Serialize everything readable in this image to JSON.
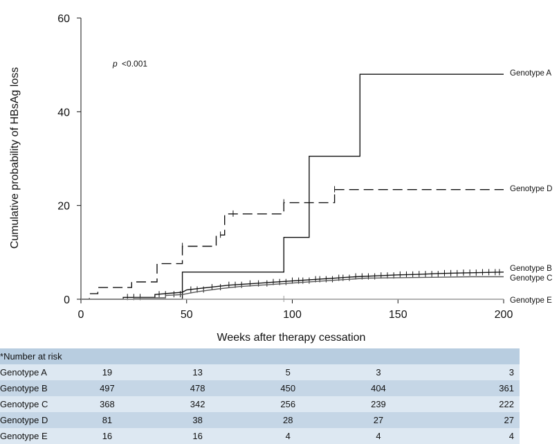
{
  "chart_data": {
    "type": "line",
    "step": true,
    "xlabel": "Weeks after therapy cessation",
    "ylabel": "Cumulative probability of HBsAg loss",
    "xlim": [
      0,
      200
    ],
    "ylim": [
      0,
      60
    ],
    "xticks": [
      0,
      50,
      100,
      150,
      200
    ],
    "yticks": [
      0,
      20,
      40,
      60
    ],
    "annotation_prefix": "p",
    "annotation_value": "<0.001",
    "series": [
      {
        "name": "Genotype A",
        "style": "solid",
        "color": "#111111",
        "points": [
          [
            0,
            0
          ],
          [
            48,
            0
          ],
          [
            48,
            5.8
          ],
          [
            96,
            5.8
          ],
          [
            96,
            13.2
          ],
          [
            108,
            13.2
          ],
          [
            108,
            30.5
          ],
          [
            132,
            30.5
          ],
          [
            132,
            48
          ],
          [
            200,
            48
          ]
        ]
      },
      {
        "name": "Genotype B",
        "style": "solid",
        "color": "#111111",
        "points": [
          [
            0,
            0
          ],
          [
            20,
            0
          ],
          [
            20,
            0.4
          ],
          [
            35,
            0.4
          ],
          [
            35,
            1
          ],
          [
            48,
            1.5
          ],
          [
            50,
            2
          ],
          [
            60,
            2.5
          ],
          [
            70,
            3
          ],
          [
            80,
            3.3
          ],
          [
            90,
            3.6
          ],
          [
            100,
            3.9
          ],
          [
            110,
            4.2
          ],
          [
            120,
            4.5
          ],
          [
            130,
            4.8
          ],
          [
            140,
            5
          ],
          [
            150,
            5.2
          ],
          [
            160,
            5.3
          ],
          [
            170,
            5.5
          ],
          [
            180,
            5.6
          ],
          [
            190,
            5.7
          ],
          [
            200,
            5.8
          ]
        ],
        "censor_x": [
          22,
          25,
          28,
          37,
          40,
          44,
          47,
          52,
          55,
          58,
          62,
          66,
          70,
          73,
          76,
          80,
          84,
          88,
          91,
          94,
          97,
          100,
          103,
          105,
          108,
          111,
          113,
          116,
          119,
          122,
          124,
          127,
          130,
          133,
          136,
          139,
          142,
          145,
          148,
          151,
          154,
          157,
          160,
          163,
          166,
          169,
          172,
          175,
          178,
          181,
          184,
          187,
          190,
          193,
          196,
          198
        ]
      },
      {
        "name": "Genotype C",
        "style": "solid",
        "color": "#555555",
        "points": [
          [
            0,
            0
          ],
          [
            25,
            0
          ],
          [
            25,
            0.3
          ],
          [
            40,
            0.3
          ],
          [
            40,
            0.8
          ],
          [
            48,
            1
          ],
          [
            55,
            1.6
          ],
          [
            65,
            2.2
          ],
          [
            75,
            2.7
          ],
          [
            85,
            3
          ],
          [
            95,
            3.3
          ],
          [
            105,
            3.6
          ],
          [
            115,
            3.9
          ],
          [
            125,
            4.2
          ],
          [
            135,
            4.5
          ],
          [
            150,
            4.6
          ],
          [
            170,
            4.7
          ],
          [
            185,
            4.8
          ],
          [
            200,
            4.8
          ]
        ]
      },
      {
        "name": "Genotype D",
        "style": "dashed",
        "color": "#111111",
        "points": [
          [
            0,
            0
          ],
          [
            4,
            0
          ],
          [
            4,
            1.2
          ],
          [
            8,
            1.2
          ],
          [
            8,
            2.5
          ],
          [
            24,
            2.5
          ],
          [
            24,
            3.7
          ],
          [
            36,
            3.7
          ],
          [
            36,
            7.6
          ],
          [
            48,
            7.6
          ],
          [
            48,
            11.3
          ],
          [
            64,
            11.3
          ],
          [
            64,
            13.7
          ],
          [
            68,
            13.7
          ],
          [
            68,
            18.2
          ],
          [
            96,
            18.2
          ],
          [
            96,
            20.6
          ],
          [
            120,
            20.6
          ],
          [
            120,
            23.4
          ],
          [
            200,
            23.4
          ]
        ],
        "censor_x": [
          48,
          66,
          72,
          96,
          120
        ]
      },
      {
        "name": "Genotype E",
        "style": "solid",
        "color": "#999999",
        "points": [
          [
            0,
            0
          ],
          [
            200,
            0
          ]
        ],
        "censor_x": [
          96
        ]
      }
    ],
    "risk_table": {
      "header": "Number at risk*",
      "rows": [
        {
          "label": "Genotype A",
          "values": [
            "19",
            "13",
            "5",
            "3",
            "3"
          ]
        },
        {
          "label": "Genotype B",
          "values": [
            "497",
            "478",
            "450",
            "404",
            "361"
          ]
        },
        {
          "label": "Genotype C",
          "values": [
            "368",
            "342",
            "256",
            "239",
            "222"
          ]
        },
        {
          "label": "Genotype D",
          "values": [
            "81",
            "38",
            "28",
            "27",
            "27"
          ]
        },
        {
          "label": "Genotype E",
          "values": [
            "16",
            "16",
            "4",
            "4",
            "4"
          ]
        }
      ]
    }
  }
}
